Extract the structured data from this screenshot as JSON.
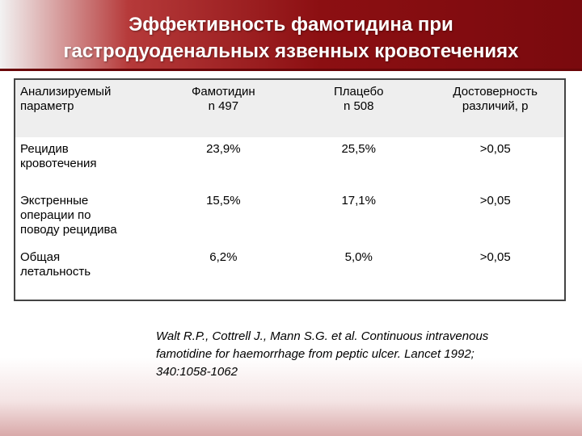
{
  "title": {
    "line1": "Эффективность фамотидина при",
    "line2": "гастродуоденальных язвенных кровотечениях"
  },
  "table": {
    "headers": [
      {
        "line1": "Анализируемый",
        "line2": "параметр"
      },
      {
        "line1": "Фамотидин",
        "line2": "n 497"
      },
      {
        "line1": "Плацебо",
        "line2": "n 508"
      },
      {
        "line1": "Достоверность",
        "line2": "различий, р"
      }
    ],
    "rows": [
      {
        "param": [
          "Рецидив",
          "кровотечения"
        ],
        "famotidine": "23,9%",
        "placebo": "25,5%",
        "p": ">0,05"
      },
      {
        "param": [
          "Экстренные",
          "операции по",
          "поводу рецидива"
        ],
        "famotidine": "15,5%",
        "placebo": "17,1%",
        "p": ">0,05"
      },
      {
        "param": [
          "Общая",
          "летальность"
        ],
        "famotidine": "6,2%",
        "placebo": "5,0%",
        "p": ">0,05"
      }
    ]
  },
  "citation": {
    "line1": "Walt R.P., Cottrell J., Mann S.G. et al. Continuous intravenous",
    "line2": "famotidine for haemorrhage from peptic ulcer. Lancet 1992;",
    "line3": "340:1058-1062"
  },
  "colors": {
    "title_bar_dark": "#7a0a0e",
    "title_bar_mid": "#b63a3a",
    "title_text": "#ffffff",
    "header_row_bg": "#eeeeee"
  }
}
